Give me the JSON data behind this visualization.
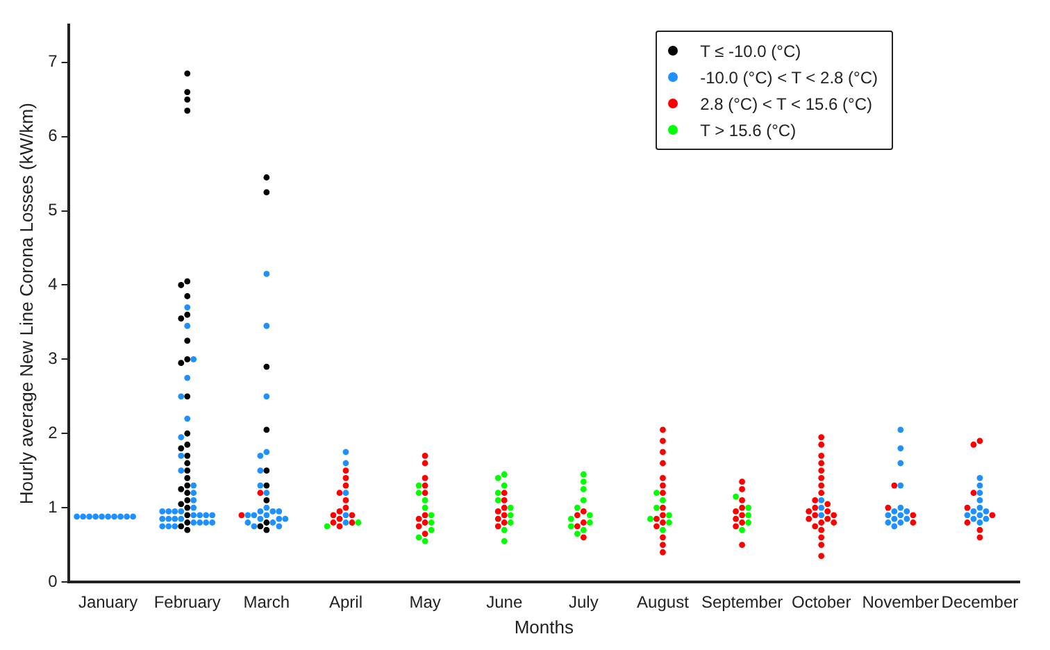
{
  "chart_data": {
    "type": "scatter",
    "xlabel": "Months",
    "ylabel": "Hourly average New Line Corona Losses (kW/km)",
    "categories": [
      "January",
      "February",
      "March",
      "April",
      "May",
      "June",
      "July",
      "August",
      "September",
      "October",
      "November",
      "December"
    ],
    "ylim": [
      0,
      7.5
    ],
    "yticks": [
      0,
      1,
      2,
      3,
      4,
      5,
      6,
      7
    ],
    "grid": false,
    "legend": "top right",
    "marker": "circle",
    "series": [
      {
        "name": "T ≤ -10.0 (°C)",
        "color": "#000000",
        "x": [
          "February",
          "February",
          "February",
          "February",
          "February",
          "February",
          "February",
          "February",
          "February",
          "February",
          "February",
          "February",
          "February",
          "February",
          "February",
          "February",
          "February",
          "February",
          "February",
          "February",
          "February",
          "February",
          "February",
          "February",
          "February",
          "February",
          "February",
          "February",
          "February",
          "February",
          "March",
          "March",
          "March",
          "March",
          "March",
          "March",
          "March",
          "March",
          "March",
          "March"
        ],
        "values": [
          6.85,
          6.6,
          6.5,
          6.35,
          4.05,
          4.0,
          3.85,
          3.6,
          3.55,
          3.25,
          3.0,
          2.95,
          2.5,
          2.0,
          1.85,
          1.8,
          1.7,
          1.6,
          1.5,
          1.4,
          1.3,
          1.25,
          1.2,
          1.1,
          1.05,
          1.0,
          0.9,
          0.8,
          0.75,
          0.7,
          5.45,
          5.25,
          2.9,
          2.05,
          1.5,
          1.3,
          1.1,
          0.8,
          0.75,
          0.7
        ]
      },
      {
        "name": "-10.0 (°C) < T < 2.8 (°C)",
        "color": "#1e90ff",
        "x": [
          "January",
          "January",
          "January",
          "January",
          "January",
          "January",
          "January",
          "January",
          "January",
          "January",
          "February",
          "February",
          "February",
          "February",
          "February",
          "February",
          "February",
          "February",
          "February",
          "February",
          "February",
          "February",
          "February",
          "February",
          "February",
          "February",
          "February",
          "February",
          "February",
          "February",
          "February",
          "February",
          "February",
          "February",
          "February",
          "February",
          "February",
          "February",
          "February",
          "February",
          "February",
          "February",
          "March",
          "March",
          "March",
          "March",
          "March",
          "March",
          "March",
          "March",
          "March",
          "March",
          "March",
          "March",
          "March",
          "March",
          "March",
          "March",
          "March",
          "March",
          "March",
          "March",
          "March",
          "March",
          "April",
          "April",
          "April",
          "April",
          "April",
          "October",
          "October",
          "October",
          "November",
          "November",
          "November",
          "November",
          "November",
          "November",
          "November",
          "November",
          "November",
          "November",
          "November",
          "November",
          "November",
          "November",
          "December",
          "December",
          "December",
          "December",
          "December",
          "December",
          "December",
          "December",
          "December",
          "December",
          "December",
          "December"
        ],
        "values": [
          0.88,
          0.88,
          0.88,
          0.88,
          0.88,
          0.88,
          0.88,
          0.88,
          0.88,
          0.88,
          3.7,
          3.45,
          3.0,
          2.75,
          2.5,
          2.2,
          1.95,
          1.7,
          1.5,
          1.3,
          1.2,
          1.1,
          1.0,
          0.95,
          0.9,
          0.85,
          0.8,
          0.75,
          0.95,
          0.9,
          0.85,
          0.8,
          0.75,
          0.95,
          0.9,
          0.85,
          0.8,
          0.75,
          0.95,
          0.9,
          0.85,
          0.8,
          4.15,
          3.45,
          2.5,
          1.75,
          1.7,
          1.5,
          1.3,
          1.2,
          1.0,
          0.95,
          0.9,
          0.85,
          0.8,
          0.75,
          0.95,
          0.9,
          0.85,
          0.8,
          0.75,
          0.95,
          0.9,
          0.85,
          1.75,
          1.6,
          1.2,
          0.9,
          0.8,
          1.1,
          1.0,
          0.9,
          2.05,
          1.8,
          1.6,
          1.3,
          1.0,
          0.95,
          0.9,
          0.85,
          0.8,
          0.75,
          0.95,
          0.9,
          0.85,
          0.8,
          1.4,
          1.3,
          1.2,
          1.1,
          1.0,
          0.95,
          0.9,
          0.85,
          0.8,
          0.95,
          0.9,
          0.85
        ]
      },
      {
        "name": "2.8 (°C) < T < 15.6 (°C)",
        "color": "#ff0000",
        "x": [
          "March",
          "March",
          "April",
          "April",
          "April",
          "April",
          "April",
          "April",
          "April",
          "April",
          "April",
          "April",
          "April",
          "April",
          "April",
          "May",
          "May",
          "May",
          "May",
          "May",
          "May",
          "May",
          "May",
          "May",
          "May",
          "June",
          "June",
          "June",
          "June",
          "June",
          "June",
          "June",
          "June",
          "July",
          "July",
          "July",
          "July",
          "July",
          "August",
          "August",
          "August",
          "August",
          "August",
          "August",
          "August",
          "August",
          "August",
          "August",
          "August",
          "August",
          "August",
          "August",
          "August",
          "September",
          "September",
          "September",
          "September",
          "September",
          "September",
          "September",
          "September",
          "September",
          "September",
          "October",
          "October",
          "October",
          "October",
          "October",
          "October",
          "October",
          "October",
          "October",
          "October",
          "October",
          "October",
          "October",
          "October",
          "October",
          "October",
          "October",
          "October",
          "October",
          "October",
          "October",
          "October",
          "October",
          "October",
          "November",
          "November",
          "November",
          "November",
          "December",
          "December",
          "December",
          "December",
          "December",
          "December",
          "December",
          "December"
        ],
        "values": [
          1.2,
          0.9,
          1.5,
          1.4,
          1.3,
          1.2,
          1.1,
          1.0,
          0.95,
          0.9,
          0.85,
          0.8,
          0.75,
          0.9,
          0.8,
          1.7,
          1.6,
          1.4,
          1.3,
          1.2,
          0.9,
          0.85,
          0.8,
          0.75,
          0.65,
          1.2,
          1.1,
          1.0,
          0.95,
          0.9,
          0.85,
          0.8,
          0.75,
          0.95,
          0.9,
          0.8,
          0.75,
          0.6,
          2.05,
          1.9,
          1.75,
          1.6,
          1.4,
          1.3,
          1.2,
          1.0,
          0.9,
          0.85,
          0.8,
          0.75,
          0.6,
          0.5,
          0.4,
          1.35,
          1.25,
          1.1,
          1.0,
          0.95,
          0.9,
          0.85,
          0.8,
          0.75,
          0.5,
          1.95,
          1.85,
          1.7,
          1.6,
          1.5,
          1.4,
          1.3,
          1.2,
          1.1,
          1.05,
          1.0,
          0.95,
          0.9,
          0.85,
          0.8,
          0.75,
          0.7,
          0.95,
          0.9,
          0.85,
          0.8,
          0.6,
          0.5,
          0.35,
          1.3,
          1.0,
          0.9,
          0.8,
          1.9,
          1.85,
          1.2,
          1.0,
          0.9,
          0.8,
          0.7,
          0.6
        ]
      },
      {
        "name": "T > 15.6 (°C)",
        "color": "#00ff00",
        "x": [
          "April",
          "April",
          "May",
          "May",
          "May",
          "May",
          "May",
          "May",
          "May",
          "May",
          "May",
          "June",
          "June",
          "June",
          "June",
          "June",
          "June",
          "June",
          "June",
          "June",
          "June",
          "July",
          "July",
          "July",
          "July",
          "July",
          "July",
          "July",
          "July",
          "July",
          "July",
          "July",
          "August",
          "August",
          "August",
          "August",
          "August",
          "August",
          "August",
          "September",
          "September",
          "September",
          "September",
          "September"
        ],
        "values": [
          0.8,
          0.75,
          1.3,
          1.2,
          1.1,
          1.0,
          0.9,
          0.8,
          0.7,
          0.6,
          0.55,
          1.45,
          1.4,
          1.3,
          1.2,
          1.1,
          1.0,
          0.9,
          0.8,
          0.7,
          0.55,
          1.45,
          1.35,
          1.25,
          1.1,
          1.0,
          0.9,
          0.85,
          0.8,
          0.75,
          0.7,
          0.65,
          1.2,
          1.1,
          1.0,
          0.9,
          0.85,
          0.8,
          0.7,
          1.15,
          1.0,
          0.9,
          0.8,
          0.7
        ]
      }
    ]
  }
}
